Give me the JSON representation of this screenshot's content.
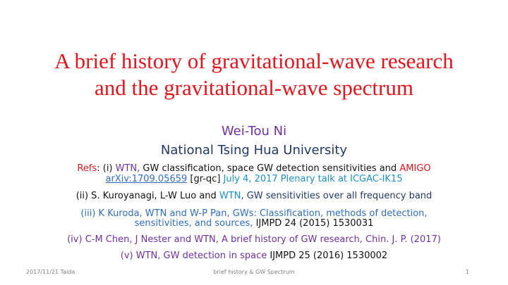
{
  "title": {
    "line1": "A brief history of gravitational-wave research",
    "line2": "and the gravitational-wave spectrum"
  },
  "author": "Wei-Tou Ni",
  "affiliation": "National Tsing Hua University",
  "refs": {
    "r1": {
      "label": "Refs",
      "colon": ": (i) ",
      "wtn": "WTN,",
      "rest": " GW classification, space GW detection sensitivities and ",
      "amigo": "AMIGO",
      "arxiv": "arXiv:1709.05659",
      "grqc": " [gr-qc] ",
      "talk": "July 4, 2017 Plenary talk at ICGAC-IK15"
    },
    "r2": {
      "pre": "(ii) S. Kuroyanagi, L-W Luo and ",
      "wtn": "WTN",
      "post": ", GW sensitivities over all frequency band"
    },
    "r3": {
      "line1": "(iii) K Kuroda, WTN and W-P Pan, GWs: Classification, methods of detection,",
      "line2": "sensitivities, and sources, ",
      "journal": "IJMPD 24 (2015) 1530031"
    },
    "r4": "(iv) C-M Chen, J Nester and WTN, A brief history of GW research, Chin. J. P. (2017)",
    "r5": {
      "main": "(v) WTN, GW detection in space ",
      "journal": "IJMPD 25 (2016) 1530002"
    }
  },
  "footer": {
    "date": "2017/11/21 Taida",
    "center": "brief history & GW Spectrum",
    "page": "1"
  },
  "colors": {
    "title": "#e8131b",
    "author": "#7030a0",
    "affiliation": "#1f3864",
    "link": "#2f6dbf"
  }
}
